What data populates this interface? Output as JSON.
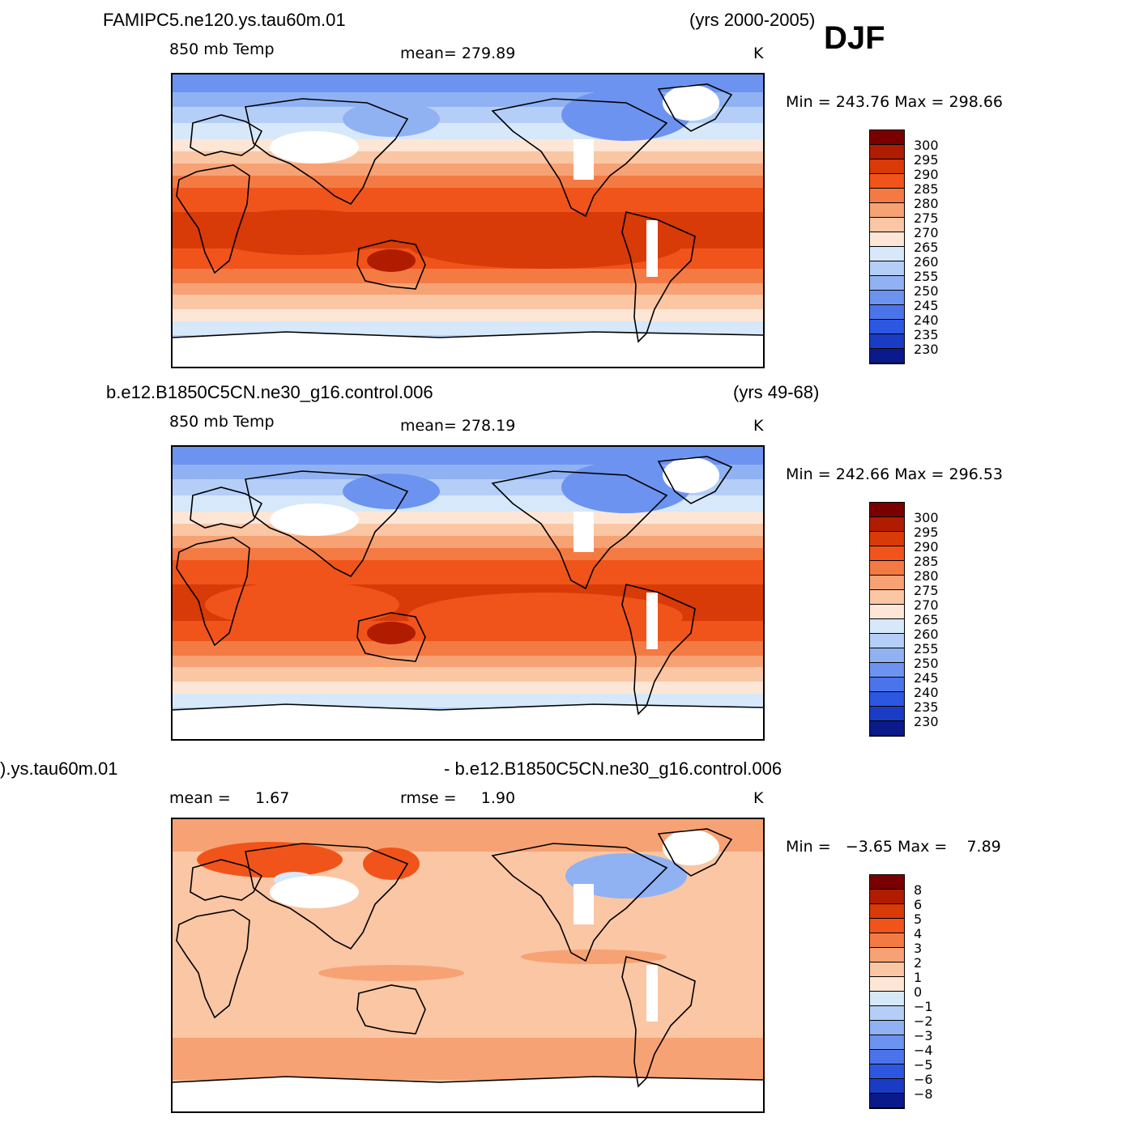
{
  "chart_data": [
    {
      "type": "heatmap",
      "panel": "top",
      "title": "FAMIPC5.ne120.ys.tau60m.01",
      "years": "(yrs 2000-2005)",
      "season": "DJF",
      "variable": "850 mb Temp",
      "stat": "mean= 279.89",
      "units": "K",
      "minmax": "Min = 243.76 Max = 298.66",
      "colorbar_labels": [
        "300",
        "295",
        "290",
        "285",
        "280",
        "275",
        "270",
        "265",
        "260",
        "255",
        "250",
        "245",
        "240",
        "235",
        "230"
      ]
    },
    {
      "type": "heatmap",
      "panel": "middle",
      "title": "b.e12.B1850C5CN.ne30_g16.control.006",
      "years": "(yrs 49-68)",
      "variable": "850 mb Temp",
      "stat": "mean= 278.19",
      "units": "K",
      "minmax": "Min = 242.66 Max = 296.53",
      "colorbar_labels": [
        "300",
        "295",
        "290",
        "285",
        "280",
        "275",
        "270",
        "265",
        "260",
        "255",
        "250",
        "245",
        "240",
        "235",
        "230"
      ]
    },
    {
      "type": "heatmap",
      "panel": "bottom",
      "title_left": ").ys.tau60m.01",
      "title_right": "- b.e12.B1850C5CN.ne30_g16.control.006",
      "stat_mean": "mean =     1.67",
      "stat_rmse": "rmse =     1.90",
      "units": "K",
      "minmax": "Min =   −3.65 Max =    7.89",
      "colorbar_labels": [
        "8",
        "6",
        "5",
        "4",
        "3",
        "2",
        "1",
        "0",
        "−1",
        "−2",
        "−3",
        "−4",
        "−5",
        "−6",
        "−8"
      ]
    }
  ],
  "colors": {
    "abs_scale": [
      "#7a0000",
      "#b01c00",
      "#d83a08",
      "#f0541a",
      "#f47a44",
      "#f7a274",
      "#fac6a4",
      "#fde6d6",
      "#d6e8fa",
      "#b4cef7",
      "#90b2f3",
      "#6d93f0",
      "#4c74ea",
      "#2c57e0",
      "#1a3cc4",
      "#0a1a8a"
    ],
    "diff_scale": [
      "#7a0000",
      "#b01c00",
      "#d83a08",
      "#f0541a",
      "#f47a44",
      "#f7a274",
      "#fac6a4",
      "#fde6d6",
      "#d6e8fa",
      "#b4cef7",
      "#90b2f3",
      "#6d93f0",
      "#4c74ea",
      "#2c57e0",
      "#1a3cc4",
      "#0a1a8a"
    ],
    "land_missing": "#ffffff",
    "coast": "#000000"
  }
}
